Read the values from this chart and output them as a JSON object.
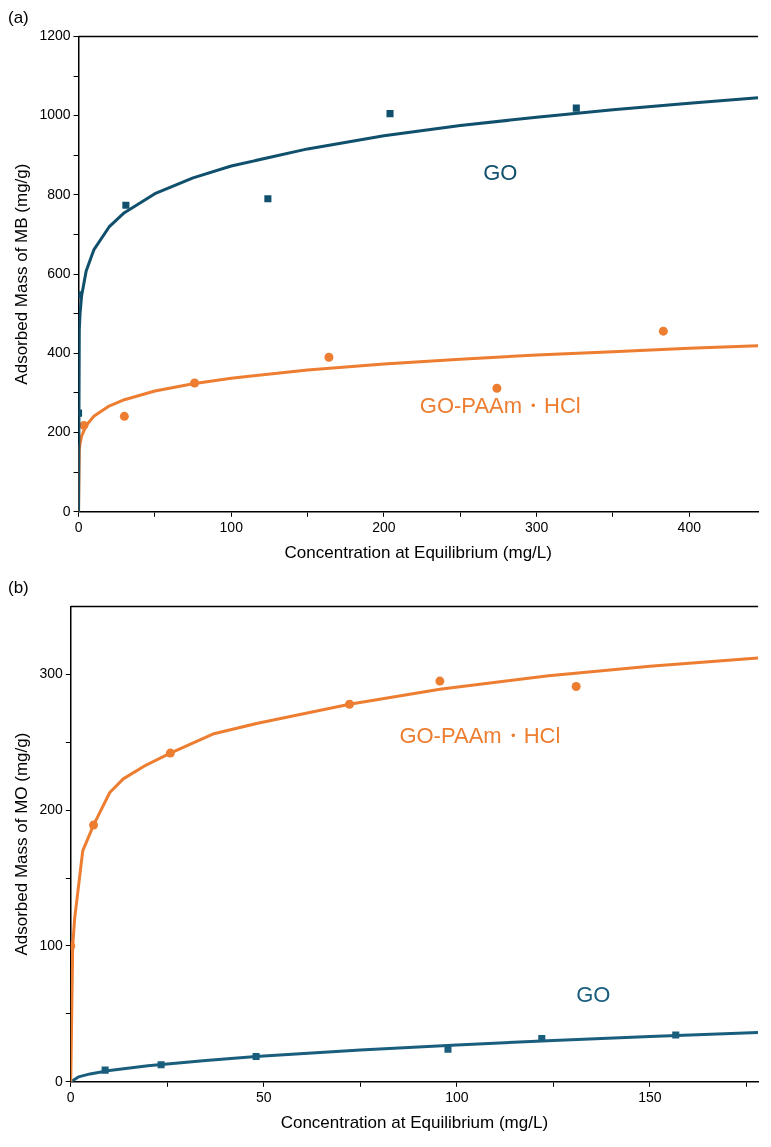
{
  "chart_data": [
    {
      "type": "scatter",
      "title": "(a)",
      "xlabel": "Concentration at Equilibrium (mg/L)",
      "ylabel": "Adsorbed Mass of MB (mg/g)",
      "xlim": [
        0,
        445
      ],
      "ylim": [
        0,
        1200
      ],
      "xticks": [
        0,
        {
          "value": 50,
          "label": null
        },
        100,
        {
          "value": 150,
          "label": null
        },
        200,
        {
          "value": 250,
          "label": null
        },
        300,
        {
          "value": 350,
          "label": null
        },
        400
      ],
      "yticks": [
        0,
        {
          "value": 100,
          "label": null
        },
        200,
        {
          "value": 300,
          "label": null
        },
        400,
        {
          "value": 500,
          "label": null
        },
        600,
        {
          "value": 700,
          "label": null
        },
        800,
        {
          "value": 900,
          "label": null
        },
        1000,
        {
          "value": 1100,
          "label": null
        },
        1200
      ],
      "grid": false,
      "legend": false,
      "series": [
        {
          "type": "scatter",
          "name": "GO",
          "color": "#10506c",
          "marker": "square",
          "x": [
            0,
            0,
            31,
            124,
            204,
            326
          ],
          "values": [
            249,
            548,
            774,
            790,
            1005,
            1019
          ]
        },
        {
          "type": "line",
          "color": "#10506c",
          "marker": "none",
          "x": [
            0,
            0.5,
            1,
            2,
            5,
            10,
            20,
            30,
            50,
            75,
            100,
            150,
            200,
            250,
            300,
            350,
            400,
            445
          ],
          "values": [
            0,
            461,
            501,
            545,
            608,
            661,
            719,
            755,
            803,
            843,
            873,
            916,
            949,
            975,
            996,
            1015,
            1031,
            1045
          ]
        },
        {
          "type": "scatter",
          "name": "GO-PAAm・HCl",
          "color": "#ed7d31",
          "marker": "circle",
          "x": [
            3.5,
            30,
            76,
            164,
            274,
            383
          ],
          "values": [
            218,
            241,
            325,
            390,
            312,
            456
          ]
        },
        {
          "type": "line",
          "color": "#ed7d31",
          "marker": "none",
          "x": [
            0,
            0.5,
            1,
            2,
            5,
            10,
            20,
            30,
            50,
            75,
            100,
            150,
            200,
            250,
            300,
            350,
            400,
            445
          ],
          "values": [
            0,
            156,
            172,
            191,
            218,
            241,
            267,
            283,
            305,
            323,
            337,
            358,
            373,
            385,
            396,
            404,
            413,
            419
          ]
        }
      ]
    },
    {
      "type": "scatter",
      "title": "(b)",
      "xlabel": "Concentration at Equilibrium (mg/L)",
      "ylabel": "Adsorbed Mass of MO (mg/g)",
      "xlim": [
        0,
        178
      ],
      "ylim": [
        0,
        350
      ],
      "xticks": [
        0,
        {
          "value": 25,
          "label": null
        },
        50,
        {
          "value": 75,
          "label": null
        },
        100,
        {
          "value": 125,
          "label": null
        },
        150,
        {
          "value": 175,
          "label": null
        }
      ],
      "yticks": [
        0,
        {
          "value": 50,
          "label": null
        },
        100,
        {
          "value": 150,
          "label": null
        },
        200,
        {
          "value": 250,
          "label": null
        },
        300
      ],
      "grid": false,
      "legend": false,
      "series": [
        {
          "type": "scatter",
          "name": "GO-PAAm・HCl",
          "color": "#ed7d31",
          "marker": "circle",
          "x": [
            0,
            5.9,
            25.8,
            72.2,
            95.6,
            130.9
          ],
          "values": [
            100,
            189,
            242,
            278,
            295,
            291
          ]
        },
        {
          "type": "line",
          "color": "#ed7d31",
          "marker": "none",
          "x": [
            0,
            0.5,
            1,
            3.1,
            5.9,
            10.1,
            13.6,
            19.4,
            25.8,
            36.8,
            48.4,
            72.2,
            95.6,
            123.8,
            150,
            178
          ],
          "values": [
            0,
            100,
            120,
            170,
            189,
            213,
            223,
            233,
            242,
            256,
            264,
            278,
            289,
            299,
            306,
            312
          ]
        },
        {
          "type": "scatter",
          "name": "GO",
          "color": "#1a5e7e",
          "marker": "square",
          "x": [
            8.9,
            23.4,
            48,
            97.7,
            122,
            156.7
          ],
          "values": [
            8.6,
            12.6,
            18.6,
            23.9,
            31.9,
            34.5
          ]
        },
        {
          "type": "line",
          "color": "#1a5e7e",
          "marker": "none",
          "x": [
            0,
            2,
            5,
            10,
            20,
            35,
            50,
            75,
            100,
            125,
            150,
            178
          ],
          "values": [
            0,
            3.6,
            5.8,
            8.3,
            11.8,
            15.7,
            19.0,
            23.4,
            27.1,
            30.4,
            33.3,
            36.3
          ]
        }
      ]
    }
  ]
}
